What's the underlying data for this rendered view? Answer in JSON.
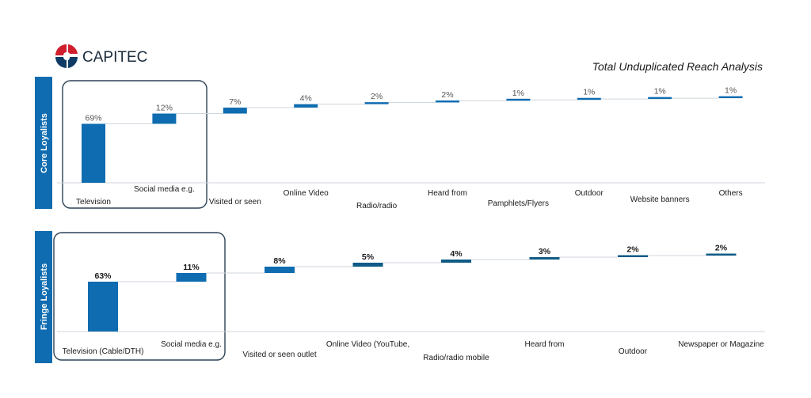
{
  "brand": {
    "name": "CAPITEC"
  },
  "page_title": "Total Unduplicated Reach Analysis",
  "colors": {
    "bar": "#0f6cb0",
    "bar_dark": "#0f5a86",
    "box": "#2b4256",
    "side_panel": "#0f6cb0",
    "logo_red": "#d0202e",
    "logo_blue": "#0f3c64"
  },
  "chart_data": [
    {
      "type": "bar",
      "panel_label": "Core Loyalists",
      "categories": [
        "Television",
        "Social media e.g.",
        "Visited or seen",
        "Online Video",
        "Radio/radio",
        "Heard from",
        "Pamphlets/Flyers",
        "Outdoor",
        "Website banners",
        "Others"
      ],
      "values": [
        69,
        12,
        7,
        4,
        2,
        2,
        1,
        1,
        1,
        1
      ],
      "value_labels": [
        "69%",
        "12%",
        "7%",
        "4%",
        "2%",
        "2%",
        "1%",
        "1%",
        "1%",
        "1%"
      ],
      "stacked_waterfall": true,
      "highlighted_categories": [
        "Television",
        "Social media e.g."
      ]
    },
    {
      "type": "bar",
      "panel_label": "Fringe Loyalists",
      "categories": [
        "Television (Cable/DTH)",
        "Social media e.g.",
        "Visited or seen outlet",
        "Online Video (YouTube,",
        "Radio/radio mobile",
        "Heard from",
        "Outdoor",
        "Newspaper or Magazine"
      ],
      "values": [
        63,
        11,
        8,
        5,
        4,
        3,
        2,
        2
      ],
      "value_labels": [
        "63%",
        "11%",
        "8%",
        "5%",
        "4%",
        "3%",
        "2%",
        "2%"
      ],
      "stacked_waterfall": true,
      "highlighted_categories": [
        "Television (Cable/DTH)",
        "Social media e.g."
      ]
    }
  ]
}
